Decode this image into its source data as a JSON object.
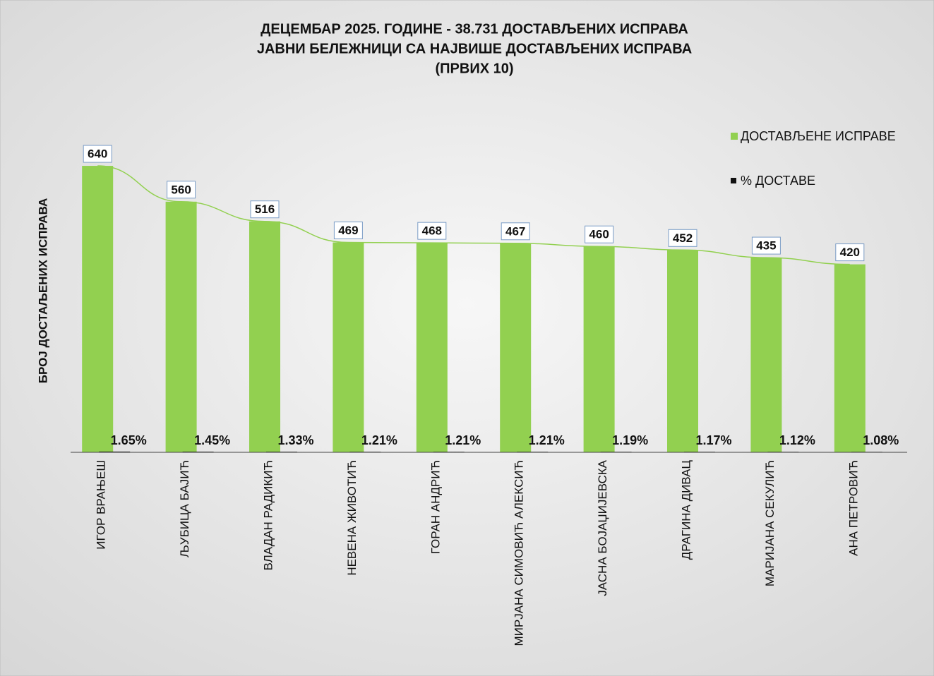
{
  "chart_data": {
    "type": "bar",
    "title": [
      "ДЕЦЕМБАР 2025. ГОДИНЕ - 38.731  ДОСТАВЉЕНИХ  ИСПРАВА",
      "ЈАВНИ БЕЛЕЖНИЦИ СА НАЈВИШЕ ДОСТАВЉЕНИХ  ИСПРАВА",
      "(ПРВИХ 10)"
    ],
    "y_label": "БРОЈ ДОСТАЉЕНИХ ИСПРАВА",
    "categories": [
      "ИГОР ВРАЊЕШ",
      "ЉУБИЦА БАЈИЋ",
      "ВЛАДАН РАДИКИЋ",
      "НЕВЕНА ЖИВОТИЋ",
      "ГОРАН АНДРИЋ",
      "МИРЈАНА СИМОВИЋ АЛЕКСИЋ",
      "ЈАСНА БОЈАЏИЈЕВСКА",
      "ДРАГИНА ДИВАЦ",
      "МАРИЈАНА СЕКУЛИЋ",
      "АНА ПЕТРОВИЋ"
    ],
    "series": [
      {
        "name": "ДОСТАВЉЕНЕ  ИСПРАВЕ",
        "color": "#92d050",
        "values": [
          640,
          560,
          516,
          469,
          468,
          467,
          460,
          452,
          435,
          420
        ]
      },
      {
        "name": "% ДОСТАВЕ",
        "color": "#111111",
        "values": [
          1.65,
          1.45,
          1.33,
          1.21,
          1.21,
          1.21,
          1.19,
          1.17,
          1.12,
          1.08
        ],
        "value_labels": [
          "1.65%",
          "1.45%",
          "1.33%",
          "1.21%",
          "1.21%",
          "1.21%",
          "1.19%",
          "1.17%",
          "1.12%",
          "1.08%"
        ]
      }
    ],
    "ylim": [
      0,
      700
    ],
    "trendline": true,
    "legend": "right"
  }
}
